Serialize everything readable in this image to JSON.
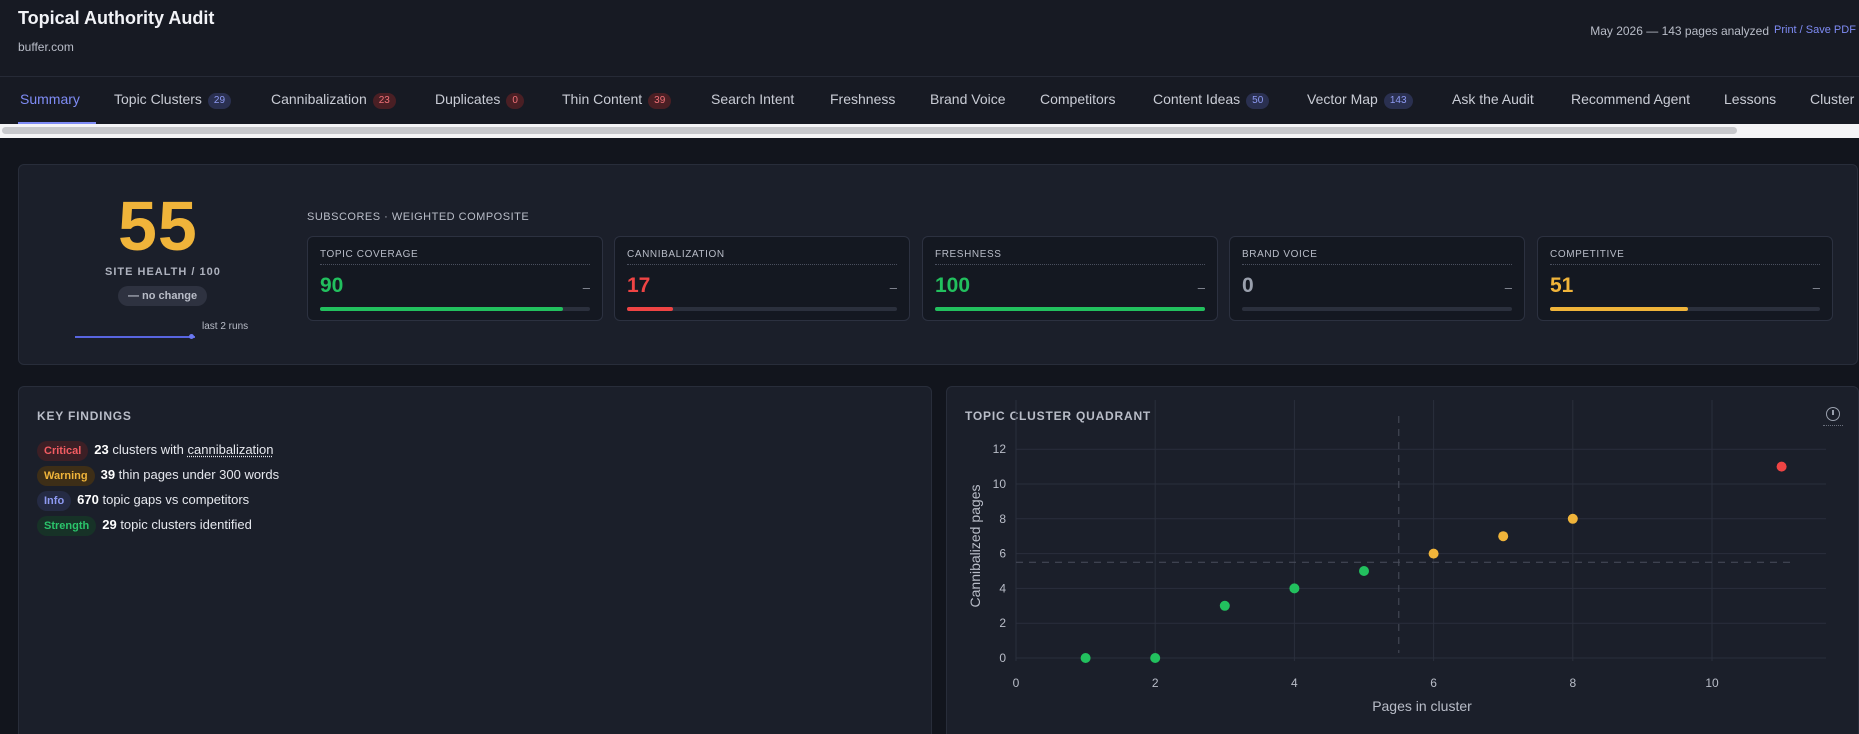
{
  "header": {
    "title": "Topical Authority Audit",
    "domain": "buffer.com",
    "meta": "May 2026 — 143 pages analyzed",
    "print_label": "Print / Save PDF"
  },
  "tabs": [
    {
      "label": "Summary",
      "active": true
    },
    {
      "label": "Topic Clusters",
      "badge": "29",
      "badge_color": "blue"
    },
    {
      "label": "Cannibalization",
      "badge": "23",
      "badge_color": "red"
    },
    {
      "label": "Duplicates",
      "badge": "0",
      "badge_color": "red"
    },
    {
      "label": "Thin Content",
      "badge": "39",
      "badge_color": "red"
    },
    {
      "label": "Search Intent"
    },
    {
      "label": "Freshness"
    },
    {
      "label": "Brand Voice"
    },
    {
      "label": "Competitors"
    },
    {
      "label": "Content Ideas",
      "badge": "50",
      "badge_color": "blue"
    },
    {
      "label": "Vector Map",
      "badge": "143",
      "badge_color": "blue"
    },
    {
      "label": "Ask the Audit"
    },
    {
      "label": "Recommend Agent"
    },
    {
      "label": "Lessons"
    },
    {
      "label": "Cluster"
    }
  ],
  "health": {
    "score": "55",
    "label": "SITE HEALTH / 100",
    "change": "— no change",
    "spark_label": "last 2 runs"
  },
  "subscores": {
    "title": "SUBSCORES · WEIGHTED COMPOSITE",
    "items": [
      {
        "name": "TOPIC COVERAGE",
        "value": "90",
        "dash": "–",
        "fill": 0.9,
        "color": "#22c05e"
      },
      {
        "name": "CANNIBALIZATION",
        "value": "17",
        "dash": "–",
        "fill": 0.17,
        "color": "#ef4444"
      },
      {
        "name": "FRESHNESS",
        "value": "100",
        "dash": "–",
        "fill": 1.0,
        "color": "#22c05e"
      },
      {
        "name": "BRAND VOICE",
        "value": "0",
        "dash": "–",
        "fill": 0.0,
        "color": "#9aa0ad"
      },
      {
        "name": "COMPETITIVE",
        "value": "51",
        "dash": "–",
        "fill": 0.51,
        "color": "#f0b43a"
      }
    ]
  },
  "findings": {
    "title": "KEY FINDINGS",
    "items": [
      {
        "level": "Critical",
        "cls": "critical",
        "count": "23",
        "text_before": " clusters with ",
        "link": "cannibalization",
        "text_after": ""
      },
      {
        "level": "Warning",
        "cls": "warning",
        "count": "39",
        "text_before": " thin pages under 300 words",
        "link": "",
        "text_after": ""
      },
      {
        "level": "Info",
        "cls": "info",
        "count": "670",
        "text_before": " topic gaps vs competitors",
        "link": "",
        "text_after": ""
      },
      {
        "level": "Strength",
        "cls": "strength",
        "count": "29",
        "text_before": " topic clusters identified",
        "link": "",
        "text_after": ""
      }
    ]
  },
  "quadrant": {
    "title": "TOPIC CLUSTER QUADRANT",
    "info_icon": "info-icon"
  },
  "chart_data": {
    "type": "scatter",
    "title": "TOPIC CLUSTER QUADRANT",
    "xlabel": "Pages in cluster",
    "ylabel": "Cannibalized pages",
    "xlim": [
      0,
      11.5
    ],
    "ylim": [
      -0.5,
      12
    ],
    "xticks": [
      0,
      2,
      4,
      6,
      8,
      10
    ],
    "yticks": [
      0,
      2,
      4,
      6,
      8,
      10,
      12
    ],
    "grid": true,
    "median_x": 5.5,
    "median_y": 5.5,
    "points": [
      {
        "x": 1,
        "y": 0,
        "color": "#22c05e"
      },
      {
        "x": 2,
        "y": 0,
        "color": "#22c05e"
      },
      {
        "x": 3,
        "y": 3,
        "color": "#22c05e"
      },
      {
        "x": 4,
        "y": 4,
        "color": "#22c05e"
      },
      {
        "x": 5,
        "y": 5,
        "color": "#22c05e"
      },
      {
        "x": 6,
        "y": 6,
        "color": "#f0b43a"
      },
      {
        "x": 7,
        "y": 7,
        "color": "#f0b43a"
      },
      {
        "x": 8,
        "y": 8,
        "color": "#f0b43a"
      },
      {
        "x": 11,
        "y": 11,
        "color": "#ef4444"
      }
    ]
  }
}
